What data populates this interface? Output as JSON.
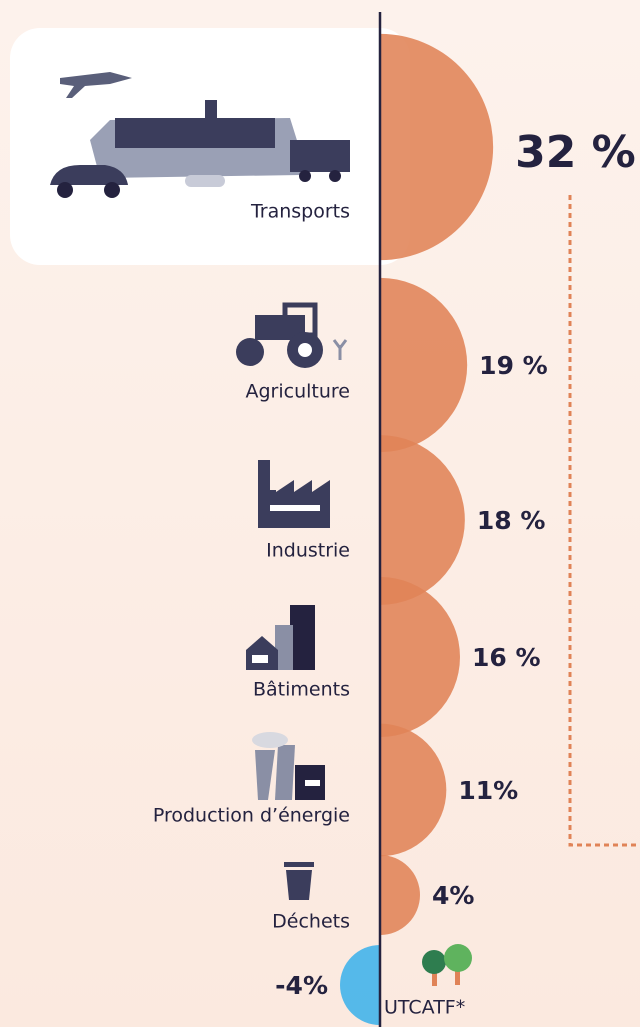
{
  "chart_data": {
    "type": "semicircle",
    "categories": [
      "Transports",
      "Agriculture",
      "Industrie",
      "Bâtiments",
      "Production d’énergie",
      "Déchets",
      "UTCATF*"
    ],
    "values": [
      32,
      19,
      18,
      16,
      11,
      4,
      -4
    ],
    "value_labels": [
      "32 %",
      "19 %",
      "18 %",
      "16 %",
      "11%",
      "4%",
      "-4%"
    ],
    "color": "#e08357",
    "negative_color": "#3db2ea"
  }
}
